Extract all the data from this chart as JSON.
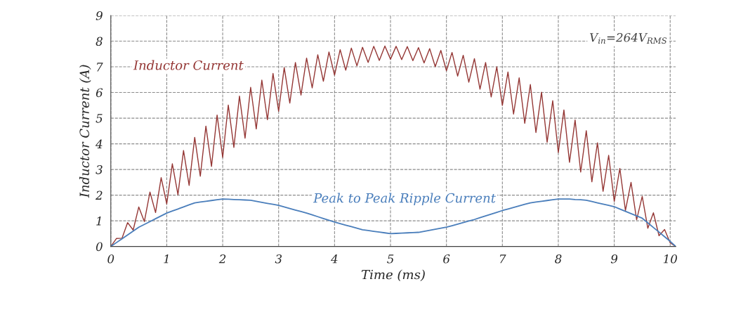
{
  "chart_data": {
    "type": "line",
    "xlabel": "Time (ms)",
    "ylabel": "Inductor Current (A)",
    "x": [
      0,
      0.1,
      0.2,
      0.3,
      0.4,
      0.5,
      0.6,
      0.7,
      0.8,
      0.9,
      1.0,
      1.1,
      1.2,
      1.3,
      1.4,
      1.5,
      1.6,
      1.7,
      1.8,
      1.9,
      2.0,
      2.1,
      2.2,
      2.3,
      2.4,
      2.5,
      2.6,
      2.7,
      2.8,
      2.9,
      3.0,
      3.1,
      3.2,
      3.3,
      3.4,
      3.5,
      3.6,
      3.7,
      3.8,
      3.9,
      4.0,
      4.1,
      4.2,
      4.3,
      4.4,
      4.5,
      4.6,
      4.7,
      4.8,
      4.9,
      5.0,
      5.1,
      5.2,
      5.3,
      5.4,
      5.5,
      5.6,
      5.7,
      5.8,
      5.9,
      6.0,
      6.1,
      6.2,
      6.3,
      6.4,
      6.5,
      6.6,
      6.7,
      6.8,
      6.9,
      7.0,
      7.1,
      7.2,
      7.3,
      7.4,
      7.5,
      7.6,
      7.7,
      7.8,
      7.9,
      8.0,
      8.1,
      8.2,
      8.3,
      8.4,
      8.5,
      8.6,
      8.7,
      8.8,
      8.9,
      9.0,
      9.1,
      9.2,
      9.3,
      9.4,
      9.5,
      9.6,
      9.7,
      9.8,
      9.9,
      10.0,
      10.1
    ],
    "series": [
      {
        "name": "Inductor Current",
        "color": "#943634",
        "values": [
          0,
          0.31,
          0.32,
          0.93,
          0.64,
          1.54,
          0.97,
          2.12,
          1.32,
          2.68,
          1.66,
          3.22,
          2.02,
          3.74,
          2.38,
          4.25,
          2.74,
          4.69,
          3.12,
          5.12,
          3.47,
          5.51,
          3.86,
          5.86,
          4.22,
          6.2,
          4.58,
          6.48,
          4.94,
          6.74,
          5.27,
          6.97,
          5.59,
          7.17,
          5.9,
          7.34,
          6.18,
          7.47,
          6.44,
          7.58,
          6.68,
          7.67,
          6.87,
          7.73,
          7.04,
          7.76,
          7.17,
          7.8,
          7.25,
          7.81,
          7.3,
          7.8,
          7.28,
          7.79,
          7.24,
          7.75,
          7.15,
          7.71,
          7.01,
          7.64,
          6.85,
          7.56,
          6.64,
          7.45,
          6.4,
          7.32,
          6.13,
          7.17,
          5.83,
          7.0,
          5.5,
          6.8,
          5.16,
          6.57,
          4.8,
          6.31,
          4.44,
          6.01,
          4.06,
          5.68,
          3.66,
          5.32,
          3.28,
          4.93,
          2.9,
          4.51,
          2.52,
          4.04,
          2.15,
          3.55,
          1.76,
          3.04,
          1.4,
          2.5,
          1.04,
          1.95,
          0.71,
          1.31,
          0.42,
          0.66,
          0.14,
          0
        ]
      },
      {
        "name": "Peak to Peak Ripple Current",
        "color": "#4a7ebb",
        "values": [
          0,
          0.15,
          0.3,
          0.45,
          0.6,
          0.75,
          0.86,
          0.97,
          1.08,
          1.19,
          1.3,
          1.38,
          1.46,
          1.54,
          1.62,
          1.7,
          1.73,
          1.76,
          1.79,
          1.82,
          1.85,
          1.84,
          1.83,
          1.82,
          1.81,
          1.8,
          1.76,
          1.72,
          1.68,
          1.64,
          1.6,
          1.54,
          1.48,
          1.42,
          1.36,
          1.3,
          1.23,
          1.16,
          1.09,
          1.02,
          0.95,
          0.89,
          0.83,
          0.77,
          0.71,
          0.65,
          0.62,
          0.59,
          0.56,
          0.53,
          0.5,
          0.51,
          0.52,
          0.53,
          0.54,
          0.55,
          0.59,
          0.63,
          0.67,
          0.71,
          0.75,
          0.81,
          0.87,
          0.93,
          0.99,
          1.05,
          1.12,
          1.19,
          1.26,
          1.33,
          1.4,
          1.46,
          1.52,
          1.58,
          1.64,
          1.7,
          1.73,
          1.76,
          1.79,
          1.82,
          1.85,
          1.85,
          1.85,
          1.83,
          1.82,
          1.8,
          1.75,
          1.7,
          1.65,
          1.6,
          1.55,
          1.46,
          1.37,
          1.28,
          1.19,
          1.1,
          0.92,
          0.74,
          0.56,
          0.38,
          0.2,
          0
        ]
      }
    ],
    "xlim": [
      0,
      10.1
    ],
    "xticks": [
      0,
      1,
      2,
      3,
      4,
      5,
      6,
      7,
      8,
      9,
      10
    ],
    "ylim": [
      0,
      9
    ],
    "yticks": [
      0,
      1,
      2,
      3,
      4,
      5,
      6,
      7,
      8,
      9
    ],
    "grid": true,
    "line_style": "solid",
    "legend": false,
    "annotations": [
      "V$_{in}$=264V$_{RMS}$"
    ]
  }
}
